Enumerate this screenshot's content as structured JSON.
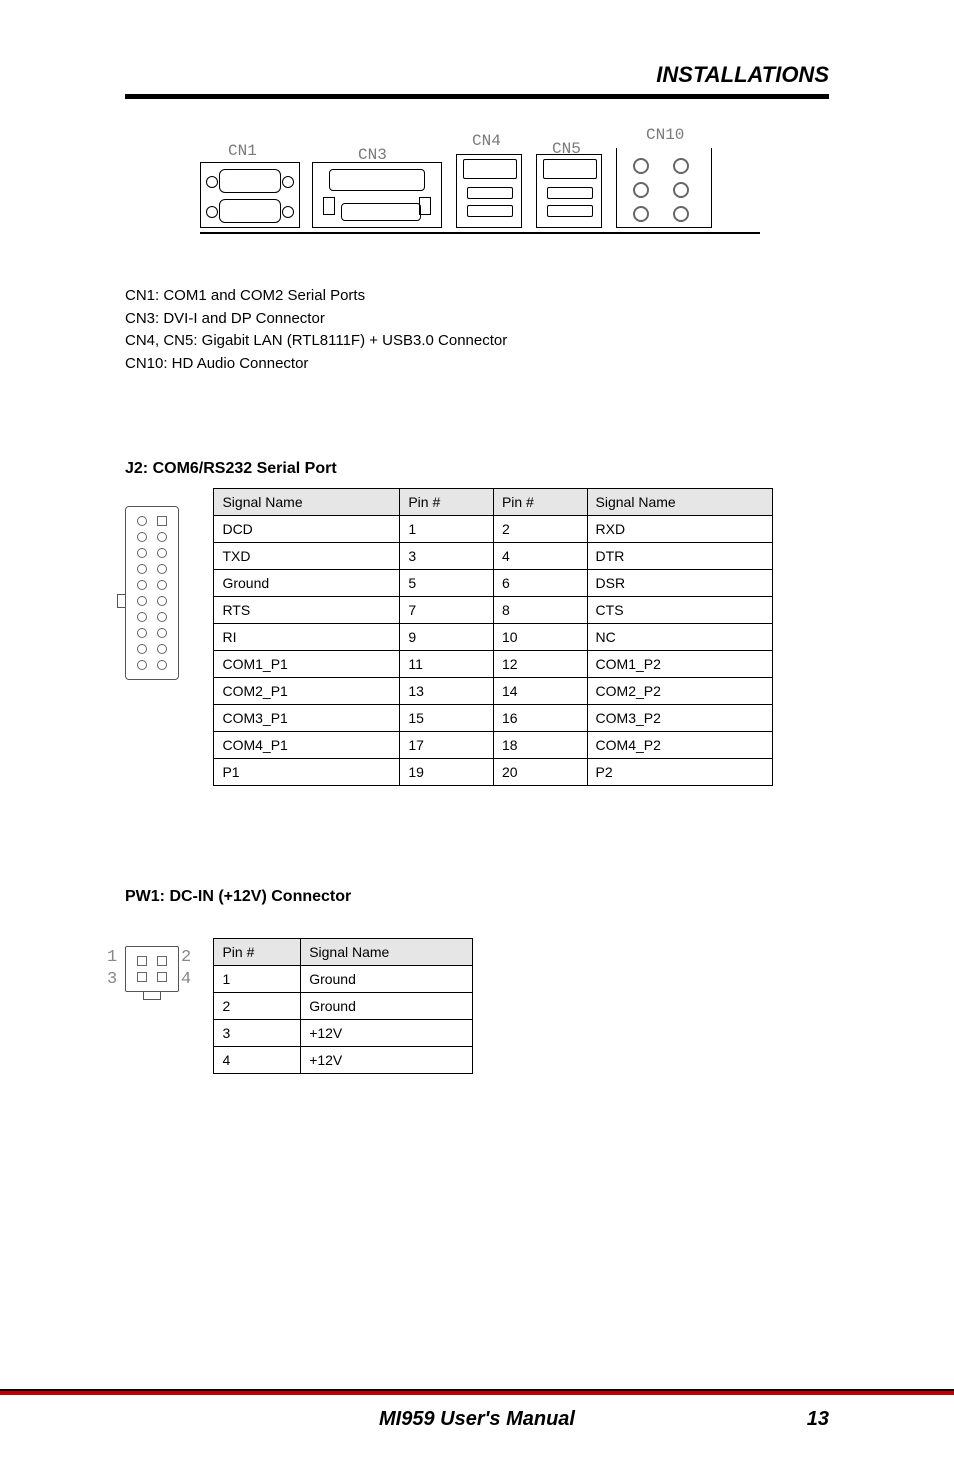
{
  "header": {
    "section": "INSTALLATIONS"
  },
  "rear_panel": {
    "labels": [
      "CN1",
      "CN3",
      "CN4",
      "CN5",
      "CN10"
    ]
  },
  "narrative": {
    "line1": "CN1: COM1 and COM2 Serial Ports",
    "line2": "CN3: DVI-I and DP Connector",
    "line3": "CN4, CN5: Gigabit LAN (RTL8111F) + USB3.0 Connector",
    "line4": "CN10: HD Audio Connector"
  },
  "j2": {
    "title": "J2: COM6/RS232 Serial Port",
    "table": {
      "headers": [
        "Signal Name",
        "Pin #",
        "Pin #",
        "Signal Name"
      ],
      "rows": [
        [
          "DCD",
          "1",
          "2",
          "RXD"
        ],
        [
          "TXD",
          "3",
          "4",
          "DTR"
        ],
        [
          "Ground",
          "5",
          "6",
          "DSR"
        ],
        [
          "RTS",
          "7",
          "8",
          "CTS"
        ],
        [
          "RI",
          "9",
          "10",
          "NC"
        ],
        [
          "COM1_P1",
          "11",
          "12",
          "COM1_P2"
        ],
        [
          "COM2_P1",
          "13",
          "14",
          "COM2_P2"
        ],
        [
          "COM3_P1",
          "15",
          "16",
          "COM3_P2"
        ],
        [
          "COM4_P1",
          "17",
          "18",
          "COM4_P2"
        ],
        [
          "P1",
          "19",
          "20",
          "P2"
        ]
      ]
    }
  },
  "pw1": {
    "title": "PW1: DC-IN (+12V) Connector",
    "table": {
      "headers": [
        "Pin #",
        "Signal Name"
      ],
      "rows": [
        [
          "1",
          "Ground"
        ],
        [
          "2",
          "Ground"
        ],
        [
          "3",
          "+12V"
        ],
        [
          "4",
          "+12V"
        ]
      ]
    },
    "side_labels": [
      "1",
      "2",
      "3",
      "4"
    ]
  },
  "footer": {
    "manual": "MI959 User's Manual",
    "page": "13"
  },
  "colors": {
    "header_rule": "#000000",
    "footer_bar": "#c00000",
    "table_head_bg": "#e6e6e6"
  }
}
